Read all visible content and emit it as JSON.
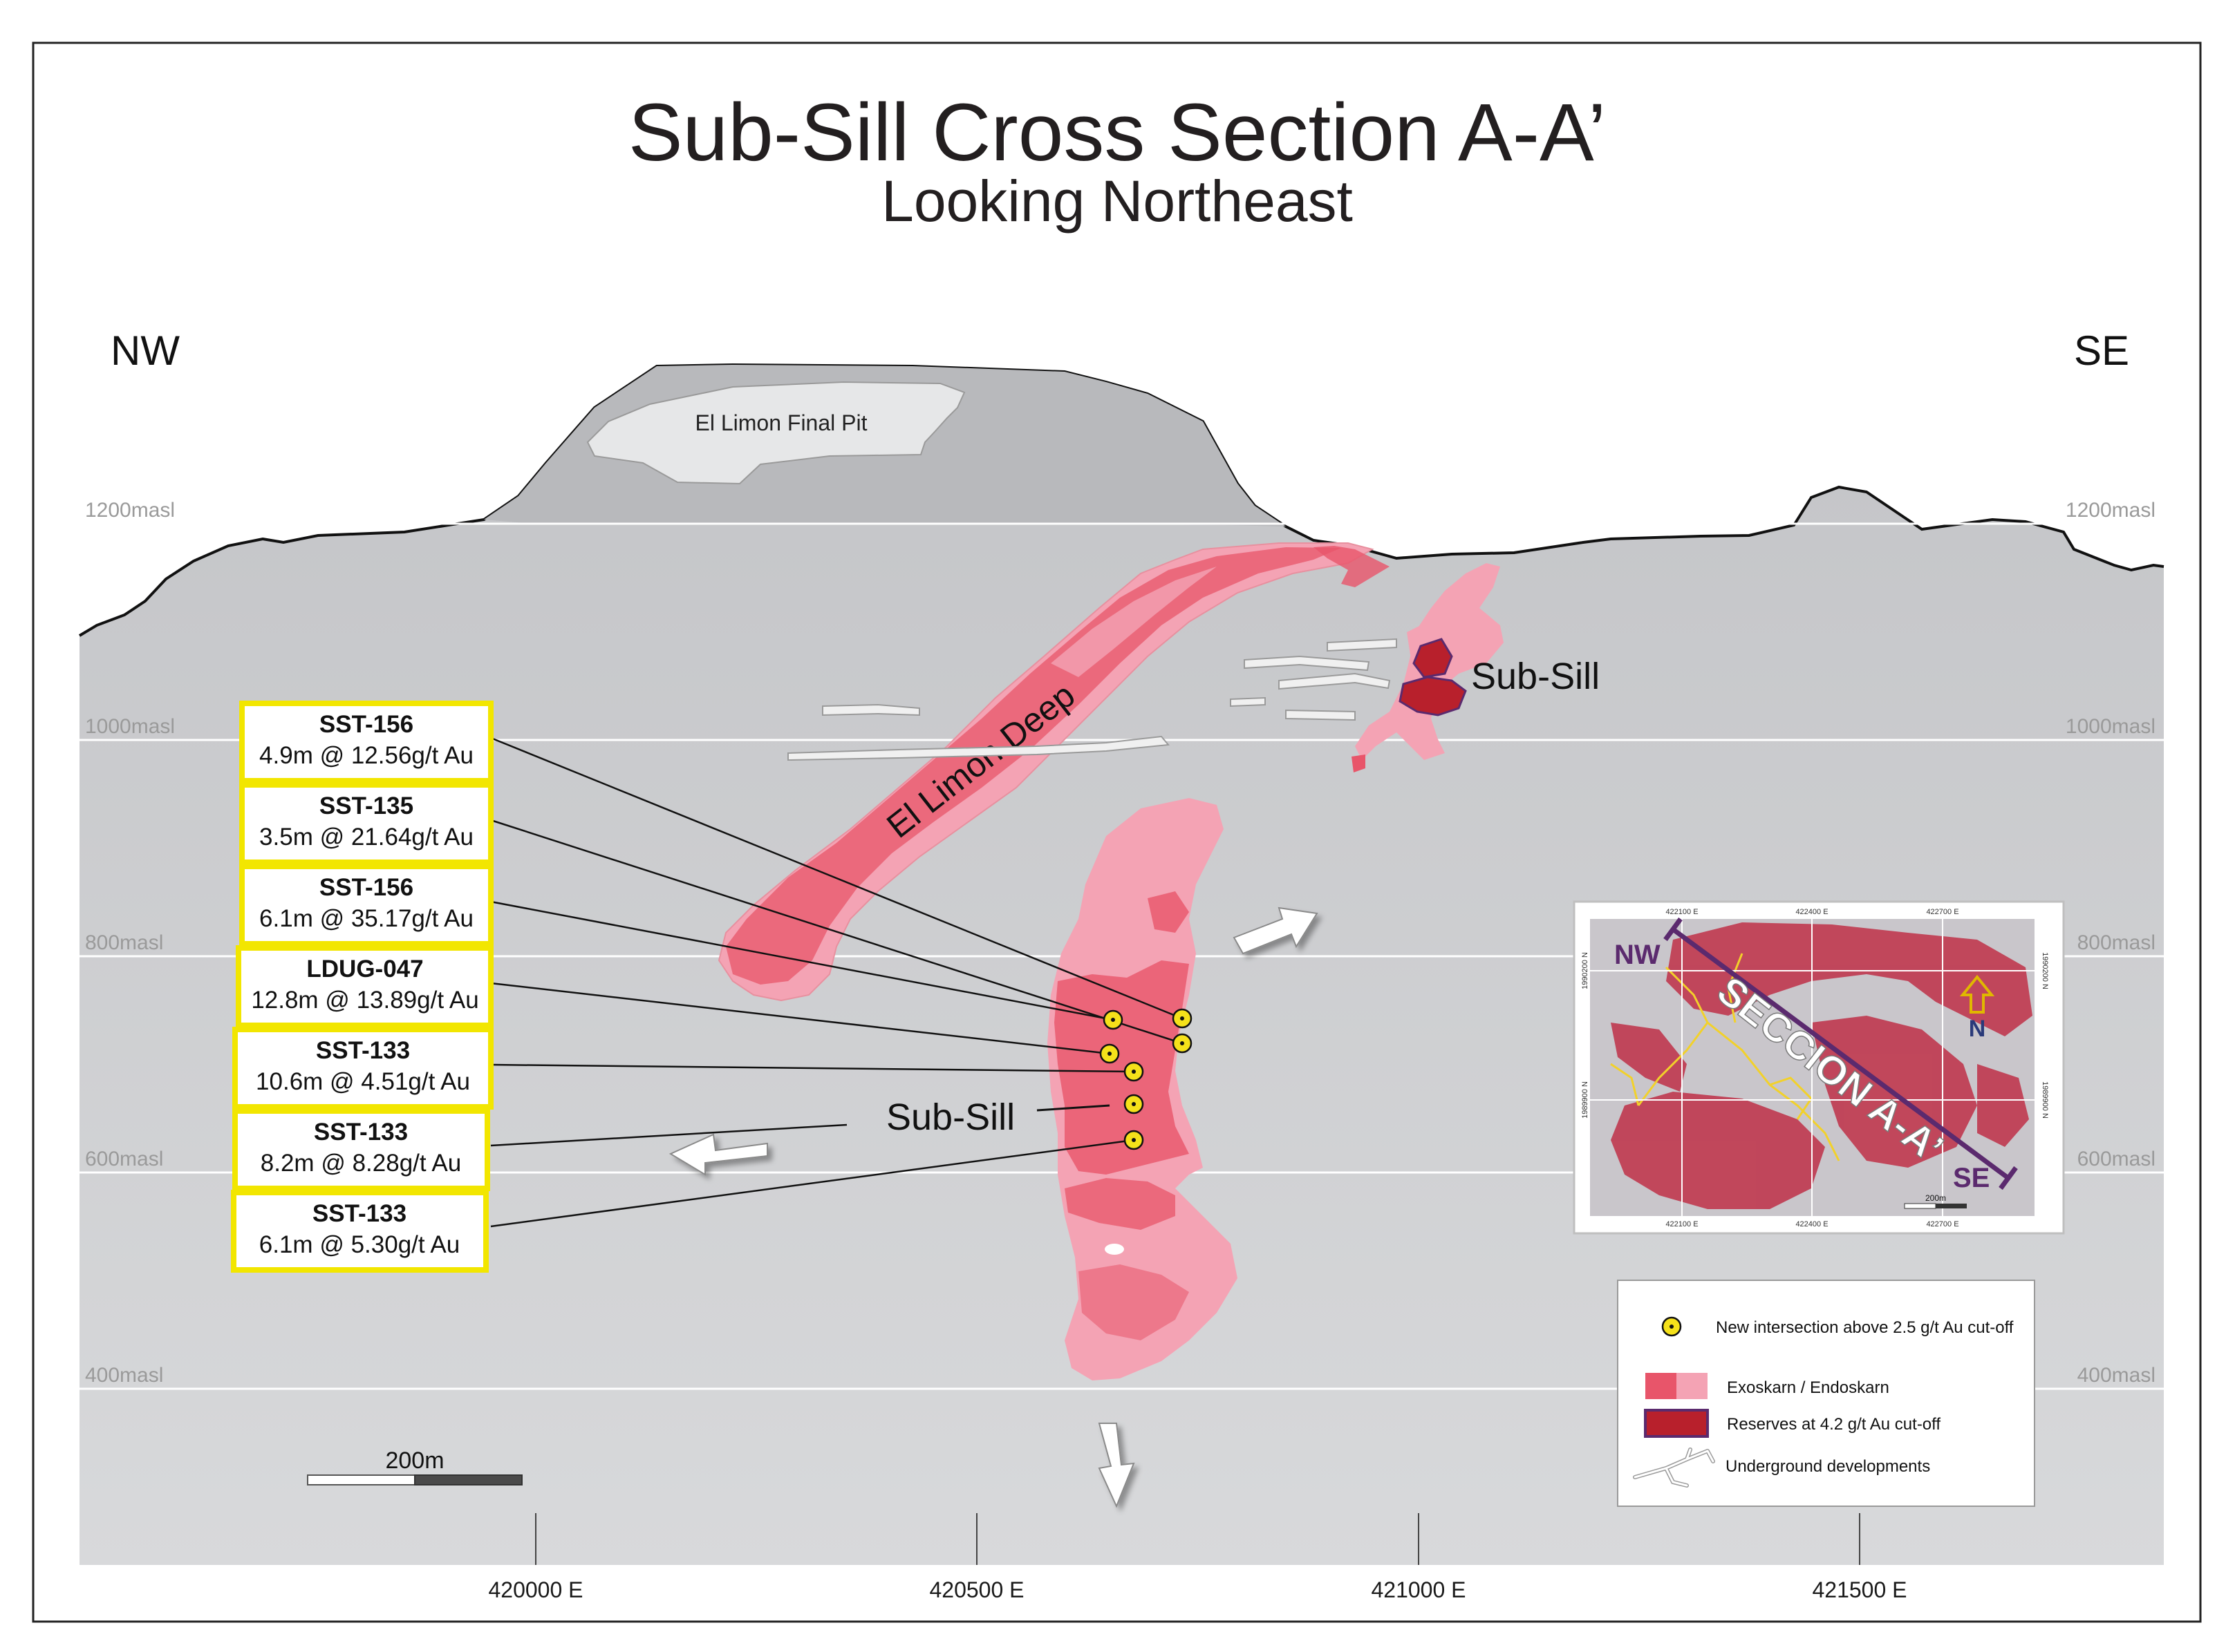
{
  "title": "Sub-Sill Cross Section A-A’",
  "subtitle": "Looking Northeast",
  "orientation": {
    "left": "NW",
    "right": "SE"
  },
  "elevation_levels": [
    {
      "label": "1200masl",
      "value": 1200
    },
    {
      "label": "1000masl",
      "value": 1000
    },
    {
      "label": "800masl",
      "value": 800
    },
    {
      "label": "600masl",
      "value": 600
    },
    {
      "label": "400masl",
      "value": 400
    }
  ],
  "eastings": [
    {
      "label": "420000 E",
      "value": 420000
    },
    {
      "label": "420500 E",
      "value": 420500
    },
    {
      "label": "421000 E",
      "value": 421000
    },
    {
      "label": "421500 E",
      "value": 421500
    }
  ],
  "features": {
    "pit_label": "El Limon Final Pit",
    "deep_label": "El Limon Deep",
    "subsill_upper_label": "Sub-Sill",
    "subsill_lower_label": "Sub-Sill"
  },
  "intercepts": [
    {
      "hole": "SST-156",
      "value": "4.9m @ 12.56g/t Au"
    },
    {
      "hole": "SST-135",
      "value": "3.5m @ 21.64g/t Au"
    },
    {
      "hole": "SST-156",
      "value": "6.1m @ 35.17g/t Au"
    },
    {
      "hole": "LDUG-047",
      "value": "12.8m @ 13.89g/t Au"
    },
    {
      "hole": "SST-133",
      "value": "10.6m @ 4.51g/t Au"
    },
    {
      "hole": "SST-133",
      "value": "8.2m @ 8.28g/t Au"
    },
    {
      "hole": "SST-133",
      "value": "6.1m @ 5.30g/t Au"
    }
  ],
  "scale_bar": {
    "label": "200m"
  },
  "inset_map": {
    "top_coords": [
      "422100 E",
      "422400 E",
      "422700 E"
    ],
    "bottom_coords": [
      "422100 E",
      "422400 E",
      "422700 E"
    ],
    "left_coords": [
      "1990200 N",
      "1989900 N"
    ],
    "right_coords": [
      "1990200 N",
      "1989900 N"
    ],
    "nw": "NW",
    "se": "SE",
    "section_label": "SECCION A-A’",
    "north": "N",
    "scale": "200m"
  },
  "legend": {
    "items": [
      {
        "label": "New intersection above 2.5 g/t Au cut-off",
        "color": "#f5e11a"
      },
      {
        "label": "Exoskarn / Endoskarn",
        "color": "#e8556a"
      },
      {
        "label": "Reserves at 4.2 g/t Au cut-off",
        "color": "#b8202c"
      },
      {
        "label": "Underground developments",
        "color": "#ffffff"
      }
    ]
  },
  "colors": {
    "rock": "#c9cacd",
    "skarn_light": "#f4a3b4",
    "skarn": "#e8556a",
    "reserve": "#b8202c",
    "callout_border": "#f2e600",
    "section_line": "#5b2a6e"
  }
}
